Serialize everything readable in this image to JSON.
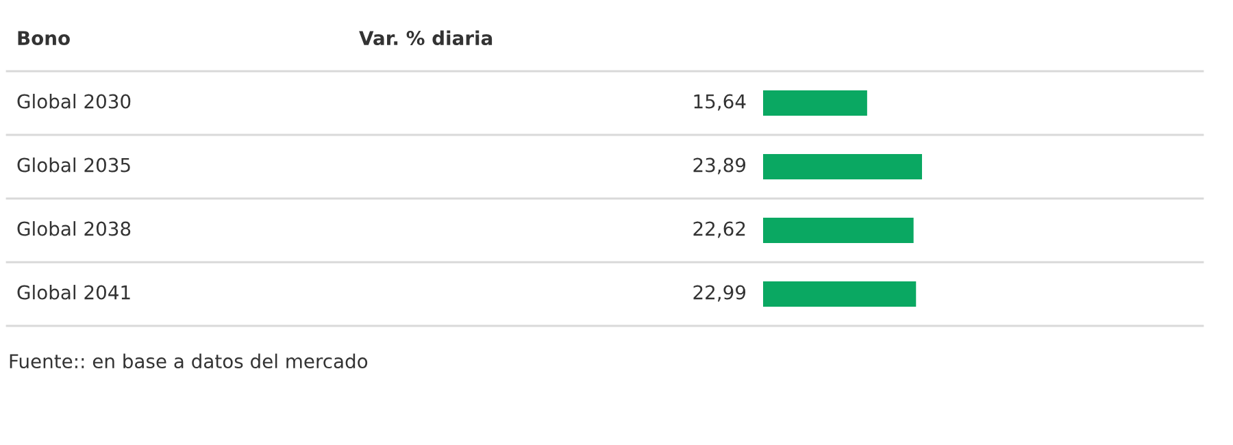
{
  "chart_data": {
    "type": "bar",
    "orientation": "horizontal",
    "ylabel": "Bono",
    "xlabel": "Var. % diaria",
    "categories": [
      "Global 2030",
      "Global 2035",
      "Global 2038",
      "Global 2041"
    ],
    "values": [
      15.64,
      23.89,
      22.62,
      22.99
    ],
    "value_labels": [
      "15,64",
      "23,89",
      "22,62",
      "22,99"
    ],
    "color": "#0aa862",
    "annotations": [
      "Fuente:: en base a datos del mercado"
    ]
  }
}
